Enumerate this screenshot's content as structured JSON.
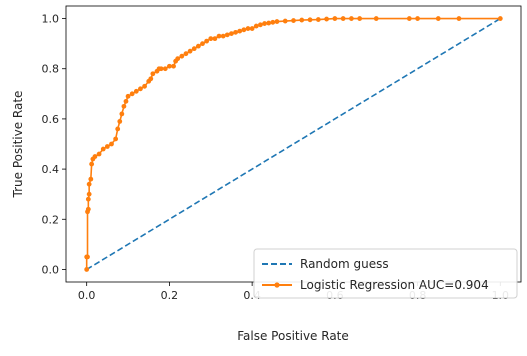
{
  "chart_data": {
    "type": "line",
    "title": "",
    "xlabel": "False Positive Rate",
    "ylabel": "True Positive Rate",
    "xlim": [
      -0.05,
      1.05
    ],
    "ylim": [
      -0.05,
      1.05
    ],
    "xticks": [
      "0.0",
      "0.2",
      "0.4",
      "0.6",
      "0.8",
      "1.0"
    ],
    "yticks": [
      "0.0",
      "0.2",
      "0.4",
      "0.6",
      "0.8",
      "1.0"
    ],
    "grid": false,
    "legend_position": "lower-right",
    "series": [
      {
        "name": "Random guess",
        "style": "dashed",
        "color": "#1f77b4",
        "x": [
          0.0,
          1.0
        ],
        "y": [
          0.0,
          1.0
        ]
      },
      {
        "name": "Logistic Regression AUC=0.904",
        "style": "solid-markers",
        "color": "#ff7f0e",
        "x": [
          0.0,
          0.0,
          0.002,
          0.002,
          0.004,
          0.004,
          0.006,
          0.006,
          0.01,
          0.012,
          0.015,
          0.02,
          0.03,
          0.04,
          0.05,
          0.06,
          0.07,
          0.075,
          0.08,
          0.085,
          0.09,
          0.095,
          0.1,
          0.11,
          0.12,
          0.13,
          0.14,
          0.15,
          0.155,
          0.16,
          0.17,
          0.175,
          0.18,
          0.19,
          0.2,
          0.21,
          0.215,
          0.22,
          0.23,
          0.24,
          0.25,
          0.26,
          0.27,
          0.28,
          0.29,
          0.3,
          0.31,
          0.32,
          0.33,
          0.34,
          0.35,
          0.36,
          0.37,
          0.38,
          0.39,
          0.4,
          0.41,
          0.42,
          0.43,
          0.44,
          0.45,
          0.46,
          0.48,
          0.5,
          0.52,
          0.54,
          0.56,
          0.58,
          0.6,
          0.62,
          0.64,
          0.66,
          0.7,
          0.78,
          0.8,
          0.85,
          0.9,
          1.0
        ],
        "y": [
          0.0,
          0.05,
          0.05,
          0.23,
          0.24,
          0.28,
          0.3,
          0.34,
          0.36,
          0.42,
          0.44,
          0.45,
          0.46,
          0.48,
          0.49,
          0.5,
          0.52,
          0.56,
          0.59,
          0.62,
          0.65,
          0.67,
          0.69,
          0.7,
          0.71,
          0.72,
          0.73,
          0.75,
          0.76,
          0.78,
          0.79,
          0.8,
          0.8,
          0.8,
          0.81,
          0.81,
          0.83,
          0.84,
          0.85,
          0.86,
          0.87,
          0.88,
          0.89,
          0.9,
          0.91,
          0.92,
          0.92,
          0.93,
          0.93,
          0.935,
          0.94,
          0.945,
          0.95,
          0.955,
          0.96,
          0.96,
          0.97,
          0.975,
          0.98,
          0.982,
          0.985,
          0.988,
          0.99,
          0.992,
          0.994,
          0.995,
          0.996,
          0.998,
          1.0,
          1.0,
          1.0,
          1.0,
          1.0,
          1.0,
          1.0,
          1.0,
          1.0,
          1.0
        ]
      }
    ]
  }
}
